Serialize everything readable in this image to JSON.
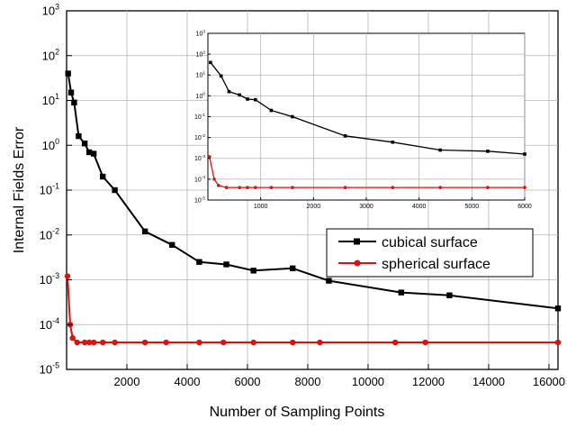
{
  "chart_data": [
    {
      "type": "line",
      "xlabel": "Number of Sampling Points",
      "ylabel": "Internal Fields Error",
      "xlim": [
        0,
        16300
      ],
      "ylim": [
        1e-05,
        1000
      ],
      "yscale": "log",
      "grid": true,
      "legend": "right-middle",
      "x_ticks": [
        2000,
        4000,
        6000,
        8000,
        10000,
        12000,
        14000,
        16000
      ],
      "x_tick_labels": [
        "2000",
        "4000",
        "6000",
        "8000",
        "10000",
        "12000",
        "14000",
        "16000"
      ],
      "y_ticks": [
        1e-05,
        0.0001,
        0.001,
        0.01,
        0.1,
        1,
        10,
        100,
        1000
      ],
      "y_tick_bases": [
        "10",
        "10",
        "10",
        "10",
        "10",
        "10",
        "10",
        "10",
        "10"
      ],
      "y_tick_exps": [
        "-5",
        "-4",
        "-3",
        "-2",
        "-1",
        "0",
        "1",
        "2",
        "3"
      ],
      "series": [
        {
          "name": "cubical surface",
          "color": "#000000",
          "marker": "square",
          "points": [
            [
              50,
              40
            ],
            [
              150,
              15
            ],
            [
              250,
              9
            ],
            [
              400,
              1.6
            ],
            [
              600,
              1.1
            ],
            [
              750,
              0.7
            ],
            [
              900,
              0.65
            ],
            [
              1200,
              0.2
            ],
            [
              1600,
              0.1
            ],
            [
              2600,
              0.012
            ],
            [
              3500,
              0.006
            ],
            [
              4400,
              0.0025
            ],
            [
              5300,
              0.0022
            ],
            [
              6200,
              0.0016
            ],
            [
              7500,
              0.0018
            ],
            [
              8700,
              0.00095
            ],
            [
              11100,
              0.00052
            ],
            [
              12700,
              0.00045
            ],
            [
              16300,
              0.00023
            ]
          ]
        },
        {
          "name": "spherical surface",
          "color": "#dd1111",
          "marker": "circle",
          "points": [
            [
              30,
              0.0012
            ],
            [
              120,
              0.0001
            ],
            [
              200,
              5e-05
            ],
            [
              350,
              4e-05
            ],
            [
              600,
              4e-05
            ],
            [
              750,
              4e-05
            ],
            [
              900,
              4e-05
            ],
            [
              1200,
              4e-05
            ],
            [
              1600,
              4e-05
            ],
            [
              2600,
              4e-05
            ],
            [
              3300,
              4e-05
            ],
            [
              4400,
              4e-05
            ],
            [
              5200,
              4e-05
            ],
            [
              6200,
              4e-05
            ],
            [
              7500,
              4e-05
            ],
            [
              8400,
              4e-05
            ],
            [
              10900,
              4e-05
            ],
            [
              11900,
              4e-05
            ],
            [
              16300,
              4e-05
            ]
          ]
        }
      ]
    },
    {
      "type": "line",
      "inset": true,
      "xlim": [
        0,
        6000
      ],
      "ylim": [
        1e-05,
        1000
      ],
      "yscale": "log",
      "grid": true,
      "x_ticks": [
        1000,
        2000,
        3000,
        4000,
        5000,
        6000
      ],
      "x_tick_labels": [
        "1000",
        "2000",
        "3000",
        "4000",
        "5000",
        "6000"
      ],
      "y_ticks": [
        1e-05,
        0.0001,
        0.001,
        0.01,
        0.1,
        1,
        10,
        100,
        1000
      ],
      "y_tick_bases": [
        "10",
        "10",
        "10",
        "10",
        "10",
        "10",
        "10",
        "10",
        "10"
      ],
      "y_tick_exps": [
        "-5",
        "-4",
        "-3",
        "-2",
        "-1",
        "0",
        "1",
        "2",
        "3"
      ],
      "series": [
        {
          "color": "#000000",
          "marker": "square",
          "points": [
            [
              50,
              40
            ],
            [
              250,
              9
            ],
            [
              400,
              1.6
            ],
            [
              600,
              1.1
            ],
            [
              750,
              0.7
            ],
            [
              900,
              0.65
            ],
            [
              1200,
              0.2
            ],
            [
              1600,
              0.1
            ],
            [
              2600,
              0.012
            ],
            [
              3500,
              0.006
            ],
            [
              4400,
              0.0025
            ],
            [
              5300,
              0.0022
            ],
            [
              6000,
              0.0016
            ]
          ]
        },
        {
          "color": "#dd1111",
          "marker": "circle",
          "points": [
            [
              30,
              0.0012
            ],
            [
              120,
              0.0001
            ],
            [
              200,
              5e-05
            ],
            [
              350,
              4e-05
            ],
            [
              600,
              4e-05
            ],
            [
              750,
              4e-05
            ],
            [
              900,
              4e-05
            ],
            [
              1200,
              4e-05
            ],
            [
              1600,
              4e-05
            ],
            [
              2600,
              4e-05
            ],
            [
              3500,
              4e-05
            ],
            [
              4400,
              4e-05
            ],
            [
              5300,
              4e-05
            ],
            [
              6000,
              4e-05
            ]
          ]
        }
      ]
    }
  ]
}
